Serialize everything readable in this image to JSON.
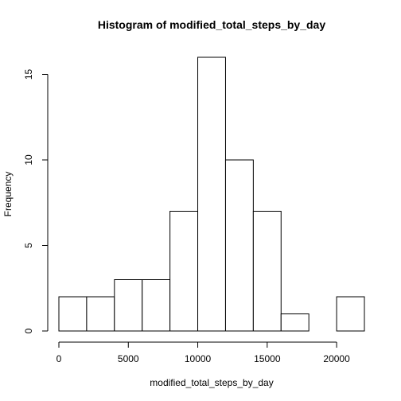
{
  "chart_data": {
    "type": "bar",
    "title": "Histogram of modified_total_steps_by_day",
    "xlabel": "modified_total_steps_by_day",
    "ylabel": "Frequency",
    "bins": [
      {
        "start": 0,
        "end": 2000,
        "count": 2
      },
      {
        "start": 2000,
        "end": 4000,
        "count": 2
      },
      {
        "start": 4000,
        "end": 6000,
        "count": 3
      },
      {
        "start": 6000,
        "end": 8000,
        "count": 3
      },
      {
        "start": 8000,
        "end": 10000,
        "count": 7
      },
      {
        "start": 10000,
        "end": 12000,
        "count": 16
      },
      {
        "start": 12000,
        "end": 14000,
        "count": 10
      },
      {
        "start": 14000,
        "end": 16000,
        "count": 7
      },
      {
        "start": 16000,
        "end": 18000,
        "count": 1
      },
      {
        "start": 18000,
        "end": 20000,
        "count": 0
      },
      {
        "start": 20000,
        "end": 22000,
        "count": 2
      }
    ],
    "xlim": [
      0,
      22000
    ],
    "ylim": [
      0,
      16
    ],
    "xticks": [
      0,
      5000,
      10000,
      15000,
      20000
    ],
    "yticks": [
      0,
      5,
      10,
      15
    ],
    "grid": false,
    "legend": "none"
  }
}
